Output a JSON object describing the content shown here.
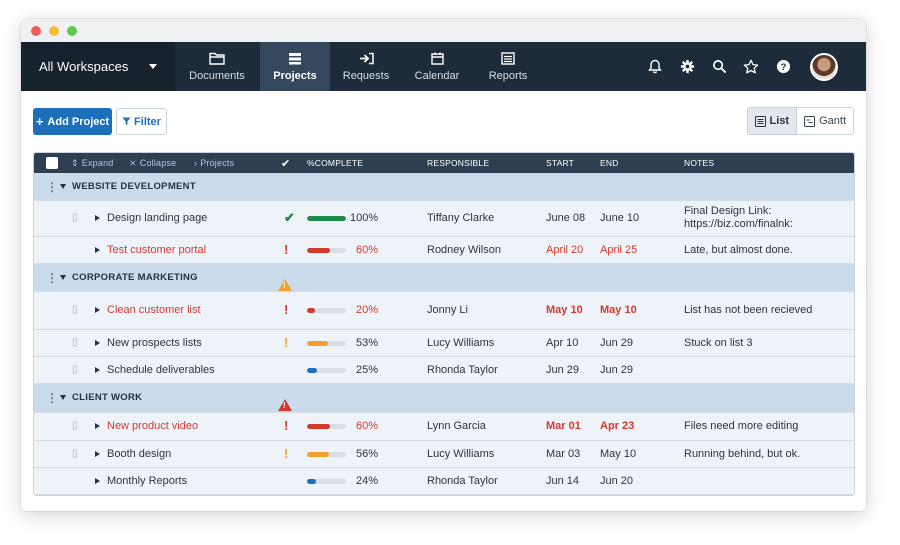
{
  "colors": {
    "nav_bg": "#1e2b3a",
    "primary": "#1e6fba",
    "danger": "#d23a2d",
    "warning": "#f0a030",
    "success": "#1f8a4a",
    "progress_blue": "#1e6fba",
    "group_bg": "#cadcec"
  },
  "window": {
    "traffic_lights": [
      "#ee5c55",
      "#f6bd3b",
      "#5fc84a"
    ]
  },
  "nav": {
    "workspace": "All Workspaces",
    "items": [
      {
        "label": "Documents",
        "icon": "folder-icon",
        "active": false
      },
      {
        "label": "Projects",
        "icon": "projects-icon",
        "active": true
      },
      {
        "label": "Requests",
        "icon": "inbox-icon",
        "active": false
      },
      {
        "label": "Calendar",
        "icon": "calendar-icon",
        "active": false
      },
      {
        "label": "Reports",
        "icon": "report-icon",
        "active": false
      }
    ],
    "right_icons": [
      "bell-icon",
      "gear-icon",
      "search-icon",
      "star-icon",
      "help-icon",
      "avatar"
    ]
  },
  "toolbar": {
    "add_label": "Add Project",
    "filter_label": "Filter",
    "view_list": "List",
    "view_gantt": "Gantt"
  },
  "table": {
    "header": {
      "expand": "Expand",
      "collapse": "Collapse",
      "projects": "Projects",
      "pct": "%COMPLETE",
      "responsible": "RESPONSIBLE",
      "start": "START",
      "end": "END",
      "notes": "NOTES"
    },
    "groups": [
      {
        "name": "WEBSITE DEVELOPMENT",
        "alert": "",
        "rows": [
          {
            "name": "Design landing page",
            "status": "done",
            "pct": 100,
            "pct_label": "100%",
            "responsible": "Tiffany Clarke",
            "start": "June 08",
            "end": "June 10",
            "notes": [
              "Final Design Link:",
              "https://biz.com/finalnk:"
            ],
            "late": false,
            "overdue": false,
            "attachment": true
          },
          {
            "name": "Test customer portal",
            "status": "danger",
            "pct": 60,
            "pct_label": "60%",
            "responsible": "Rodney Wilson",
            "start": "April 20",
            "end": "April 25",
            "notes": [
              "Late, but almost done."
            ],
            "late": true,
            "overdue": false,
            "attachment": false
          }
        ]
      },
      {
        "name": "CORPORATE MARKETING",
        "alert": "warning",
        "rows": [
          {
            "name": "Clean customer list",
            "status": "danger",
            "pct": 20,
            "pct_label": "20%",
            "responsible": "Jonny Li",
            "start": "May 10",
            "end": "May 10",
            "notes": [
              "List has not been recieved"
            ],
            "late": true,
            "overdue": true,
            "attachment": true
          },
          {
            "name": "New prospects lists",
            "status": "warning",
            "pct": 53,
            "pct_label": "53%",
            "responsible": "Lucy Williams",
            "start": "Apr 10",
            "end": "Jun 29",
            "notes": [
              "Stuck on list 3"
            ],
            "late": false,
            "overdue": false,
            "attachment": true
          },
          {
            "name": "Schedule deliverables",
            "status": "",
            "pct": 25,
            "pct_label": "25%",
            "responsible": "Rhonda Taylor",
            "start": "Jun 29",
            "end": "Jun 29",
            "notes": [
              ""
            ],
            "late": false,
            "overdue": false,
            "attachment": true
          }
        ]
      },
      {
        "name": "CLIENT WORK",
        "alert": "danger",
        "rows": [
          {
            "name": "New product video",
            "status": "danger",
            "pct": 60,
            "pct_label": "60%",
            "responsible": "Lynn Garcia",
            "start": "Mar 01",
            "end": "Apr 23",
            "notes": [
              "Files need more editing"
            ],
            "late": true,
            "overdue": true,
            "attachment": true
          },
          {
            "name": "Booth design",
            "status": "warning",
            "pct": 56,
            "pct_label": "56%",
            "responsible": "Lucy Williams",
            "start": "Mar 03",
            "end": "May 10",
            "notes": [
              "Running behind, but ok."
            ],
            "late": false,
            "overdue": false,
            "attachment": true
          },
          {
            "name": "Monthly Reports",
            "status": "",
            "pct": 24,
            "pct_label": "24%",
            "responsible": "Rhonda Taylor",
            "start": "Jun 14",
            "end": "Jun 20",
            "notes": [
              ""
            ],
            "late": false,
            "overdue": false,
            "attachment": false
          }
        ]
      }
    ]
  }
}
